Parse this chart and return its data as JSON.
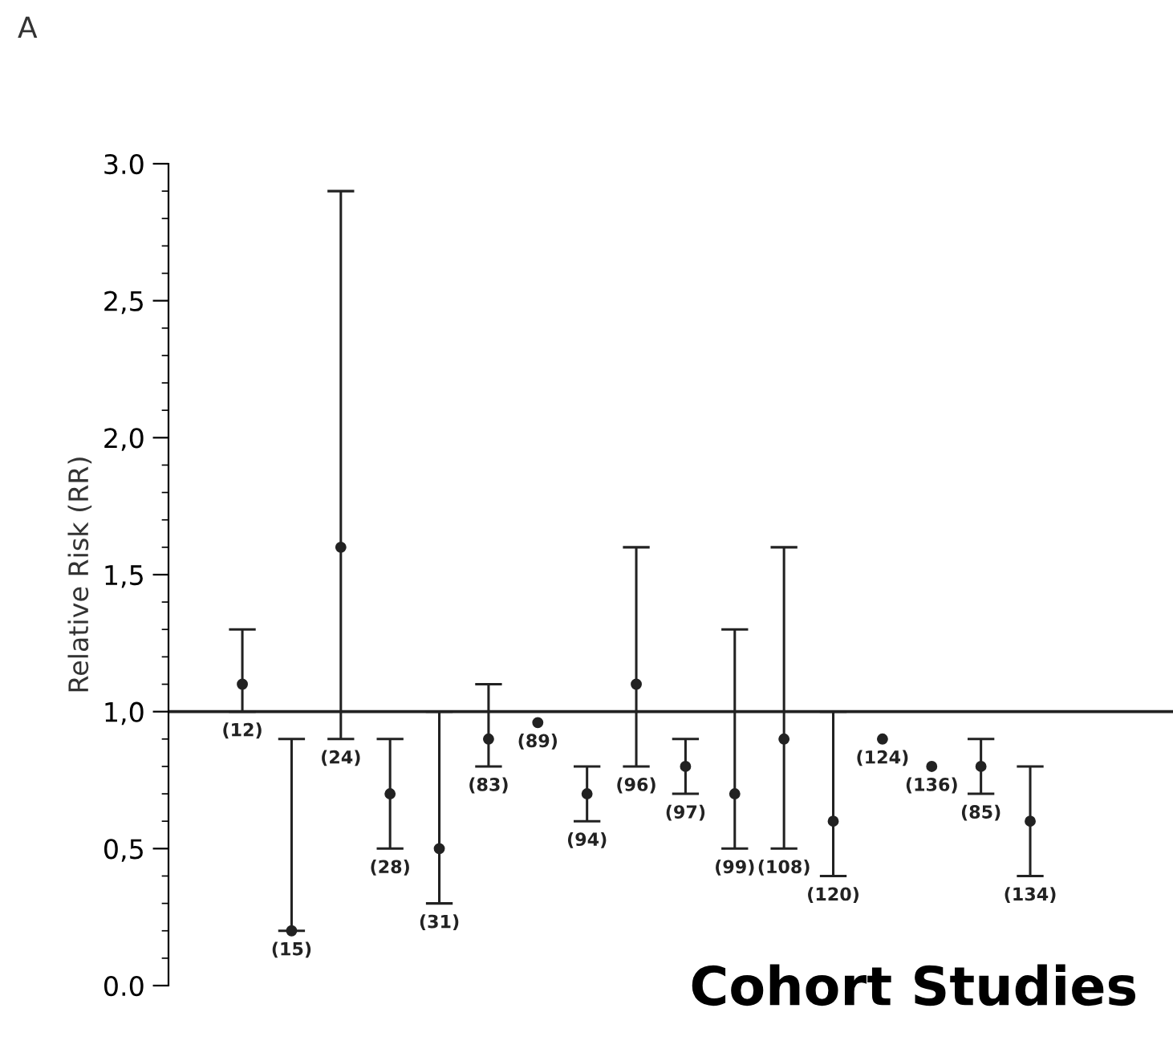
{
  "chart_data": {
    "type": "scatter",
    "title": "Cohort Studies",
    "ylabel": "Relative Risk (RR)",
    "annotations": [
      "A"
    ],
    "categories": [
      "(12)",
      "(15)",
      "(24)",
      "(28)",
      "(31)",
      "(83)",
      "(89)",
      "(94)",
      "(96)",
      "(97)",
      "(99)",
      "(108)",
      "(120)",
      "(124)",
      "(136)",
      "(85)",
      "(134)"
    ],
    "values": [
      1.1,
      0.2,
      1.6,
      0.7,
      0.5,
      0.9,
      0.96,
      0.7,
      1.1,
      0.8,
      0.7,
      0.9,
      0.6,
      0.9,
      0.8,
      0.8,
      0.6
    ],
    "errors": [
      [
        1.0,
        1.3
      ],
      [
        0.2,
        0.9
      ],
      [
        0.9,
        2.9
      ],
      [
        0.5,
        0.9
      ],
      [
        0.3,
        1.0
      ],
      [
        0.8,
        1.1
      ],
      null,
      [
        0.6,
        0.8
      ],
      [
        0.8,
        1.6
      ],
      [
        0.7,
        0.9
      ],
      [
        0.5,
        1.3
      ],
      [
        0.5,
        1.6
      ],
      [
        0.4,
        1.0
      ],
      null,
      null,
      [
        0.7,
        0.9
      ],
      [
        0.4,
        0.8
      ]
    ],
    "color": "#222222",
    "marker": "circle",
    "ylim": [
      0,
      3.0
    ],
    "yticks": [
      {
        "value": 0,
        "label": "0.0"
      },
      {
        "value": 0.5,
        "label": "0,5"
      },
      {
        "value": 1.0,
        "label": "1,0"
      },
      {
        "value": 1.5,
        "label": "1,5"
      },
      {
        "value": 2.0,
        "label": "2,0"
      },
      {
        "value": 2.5,
        "label": "2,5"
      },
      {
        "value": 3.0,
        "label": "3.0"
      }
    ],
    "ref_lines": [
      {
        "axis": "y",
        "value": 1.0,
        "color": "#222222"
      }
    ],
    "tick_labels": "y",
    "grid": false,
    "legend": false
  }
}
